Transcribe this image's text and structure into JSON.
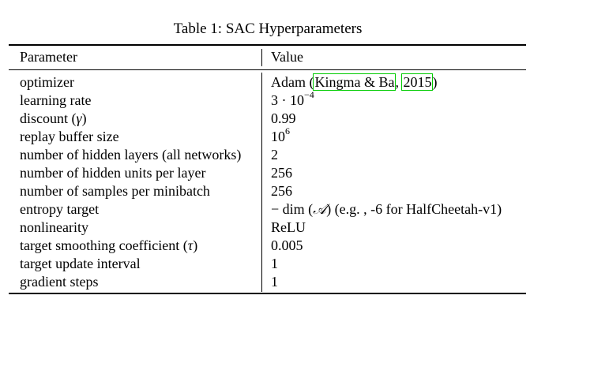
{
  "caption": "Table 1: SAC Hyperparameters",
  "headers": {
    "parameter": "Parameter",
    "value": "Value"
  },
  "rows": [
    {
      "param": "optimizer",
      "value_parts": {
        "pre": "Adam (",
        "cite1": "Kingma & Ba",
        "mid": ", ",
        "cite2": "2015",
        "post": ")"
      }
    },
    {
      "param": "learning rate",
      "value_parts": {
        "base": "3 · 10",
        "exp": "−4"
      }
    },
    {
      "param_parts": {
        "pre": "discount (",
        "sym": "γ",
        "post": ")"
      },
      "value": "0.99"
    },
    {
      "param": "replay buffer size",
      "value_parts": {
        "base": "10",
        "exp": "6"
      }
    },
    {
      "param": "number of hidden layers (all networks)",
      "value": "2"
    },
    {
      "param": "number of hidden units per layer",
      "value": "256"
    },
    {
      "param": "number of samples per minibatch",
      "value": "256"
    },
    {
      "param": "entropy target",
      "value_parts": {
        "pre": "− dim (",
        "sym": "𝒜",
        "post": ") (e.g. , -6 for HalfCheetah-v1)"
      }
    },
    {
      "param": "nonlinearity",
      "value": "ReLU"
    },
    {
      "param_parts": {
        "pre": "target smoothing coefficient (",
        "sym": "τ",
        "post": ")"
      },
      "value": "0.005"
    },
    {
      "param": "target update interval",
      "value": "1"
    },
    {
      "param": "gradient steps",
      "value": "1"
    }
  ]
}
